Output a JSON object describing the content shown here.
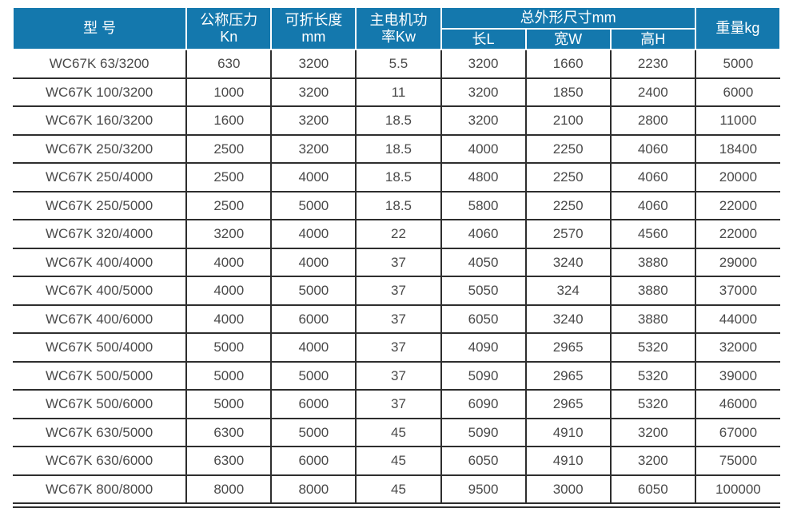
{
  "colors": {
    "header_bg": "#1478ad",
    "header_text": "#ffffff",
    "grid_line": "#2e2e2e",
    "body_text": "#4a4a4a"
  },
  "table": {
    "headers": {
      "model": "型 号",
      "pressure_line1": "公称压力",
      "pressure_line2": "Kn",
      "fold_length_line1": "可折长度",
      "fold_length_line2": "mm",
      "motor_power_line1": "主电机功",
      "motor_power_line2": "率Kw",
      "dimensions_group": "总外形尺寸mm",
      "dim_length": "长L",
      "dim_width": "宽W",
      "dim_height": "高H",
      "weight": "重量kg"
    },
    "rows": [
      [
        "WC67K 63/3200",
        "630",
        "3200",
        "5.5",
        "3200",
        "1660",
        "2230",
        "5000"
      ],
      [
        "WC67K 100/3200",
        "1000",
        "3200",
        "11",
        "3200",
        "1850",
        "2400",
        "6000"
      ],
      [
        "WC67K 160/3200",
        "1600",
        "3200",
        "18.5",
        "3200",
        "2100",
        "2800",
        "11000"
      ],
      [
        "WC67K 250/3200",
        "2500",
        "3200",
        "18.5",
        "4000",
        "2250",
        "4060",
        "18400"
      ],
      [
        "WC67K 250/4000",
        "2500",
        "4000",
        "18.5",
        "4800",
        "2250",
        "4060",
        "20000"
      ],
      [
        "WC67K 250/5000",
        "2500",
        "5000",
        "18.5",
        "5800",
        "2250",
        "4060",
        "22000"
      ],
      [
        "WC67K 320/4000",
        "3200",
        "4000",
        "22",
        "4060",
        "2570",
        "4560",
        "22000"
      ],
      [
        "WC67K 400/4000",
        "4000",
        "4000",
        "37",
        "4050",
        "3240",
        "3880",
        "29000"
      ],
      [
        "WC67K 400/5000",
        "4000",
        "5000",
        "37",
        "5050",
        "324",
        "3880",
        "37000"
      ],
      [
        "WC67K 400/6000",
        "4000",
        "6000",
        "37",
        "6050",
        "3240",
        "3880",
        "44000"
      ],
      [
        "WC67K 500/4000",
        "5000",
        "4000",
        "37",
        "4090",
        "2965",
        "5320",
        "32000"
      ],
      [
        "WC67K 500/5000",
        "5000",
        "5000",
        "37",
        "5090",
        "2965",
        "5320",
        "39000"
      ],
      [
        "WC67K 500/6000",
        "5000",
        "6000",
        "37",
        "6090",
        "2965",
        "5320",
        "46000"
      ],
      [
        "WC67K 630/5000",
        "6300",
        "5000",
        "45",
        "5090",
        "4910",
        "3200",
        "67000"
      ],
      [
        "WC67K 630/6000",
        "6300",
        "6000",
        "45",
        "6050",
        "4910",
        "3200",
        "75000"
      ],
      [
        "WC67K 800/8000",
        "8000",
        "8000",
        "45",
        "9500",
        "3000",
        "6050",
        "100000"
      ]
    ]
  }
}
